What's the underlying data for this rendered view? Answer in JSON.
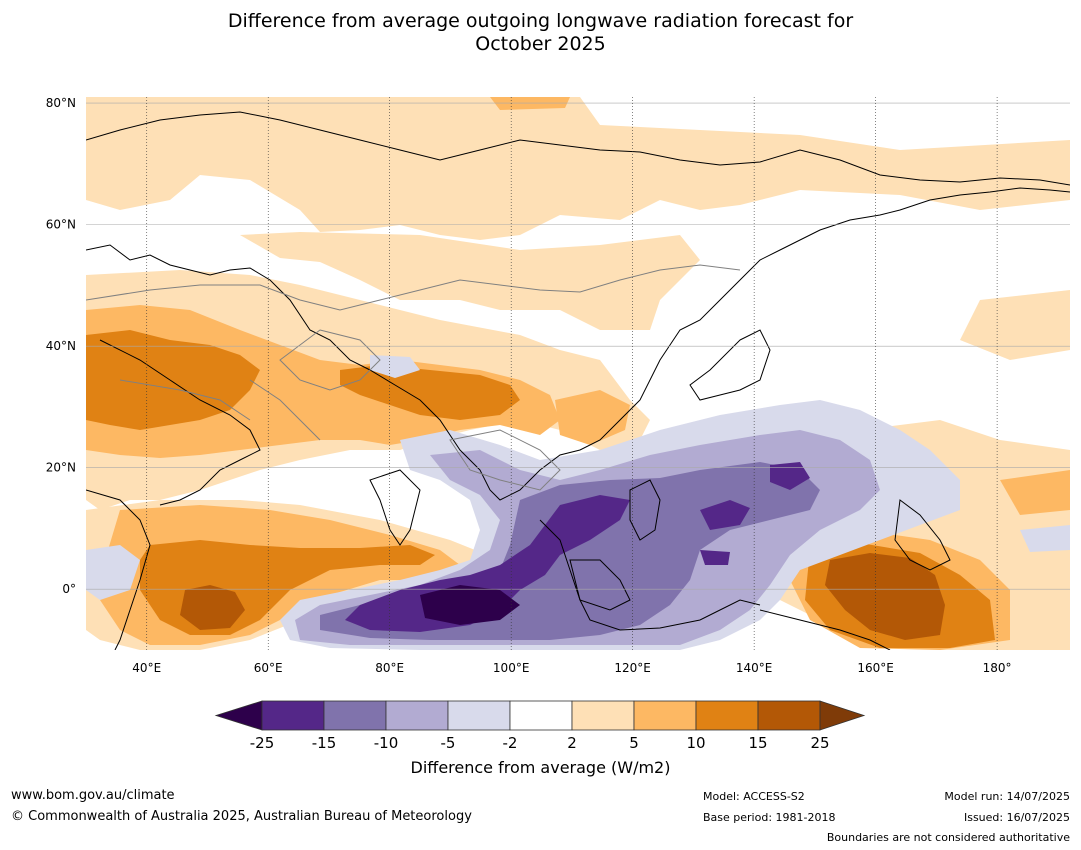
{
  "title_line1": "Difference from average outgoing longwave radiation forecast for",
  "title_line2": "October 2025",
  "map": {
    "extent": {
      "lon_min": 30,
      "lon_max": 192,
      "lat_min": -10,
      "lat_max": 81
    },
    "lat_ticks": [
      {
        "lat": 80,
        "label": "80°N"
      },
      {
        "lat": 60,
        "label": "60°N"
      },
      {
        "lat": 40,
        "label": "40°N"
      },
      {
        "lat": 20,
        "label": "20°N"
      },
      {
        "lat": 0,
        "label": "0°"
      }
    ],
    "lon_ticks": [
      {
        "lon": 40,
        "label": "40°E"
      },
      {
        "lon": 60,
        "label": "60°E"
      },
      {
        "lon": 80,
        "label": "80°E"
      },
      {
        "lon": 100,
        "label": "100°E"
      },
      {
        "lon": 120,
        "label": "120°E"
      },
      {
        "lon": 140,
        "label": "140°E"
      },
      {
        "lon": 160,
        "label": "160°E"
      },
      {
        "lon": 180,
        "label": "180°"
      }
    ]
  },
  "colorbar": {
    "tick_labels": [
      "-25",
      "-15",
      "-10",
      "-5",
      "-2",
      "2",
      "5",
      "10",
      "15",
      "25"
    ],
    "colors": [
      "#2d004b",
      "#542788",
      "#8073ac",
      "#b2abd2",
      "#d8daeb",
      "#ffffff",
      "#fee0b6",
      "#fdb863",
      "#e08214",
      "#b35806",
      "#7f3b08"
    ],
    "label": "Difference from average (W/m2)"
  },
  "footer": {
    "website": "www.bom.gov.au/climate",
    "copyright": "© Commonwealth of Australia 2025, Australian Bureau of Meteorology",
    "model": "Model: ACCESS-S2",
    "base_period": "Base period: 1981-2018",
    "model_run": "Model run: 14/07/2025",
    "issued": "Issued: 16/07/2025",
    "disclaimer": "Boundaries are not considered authoritative"
  }
}
